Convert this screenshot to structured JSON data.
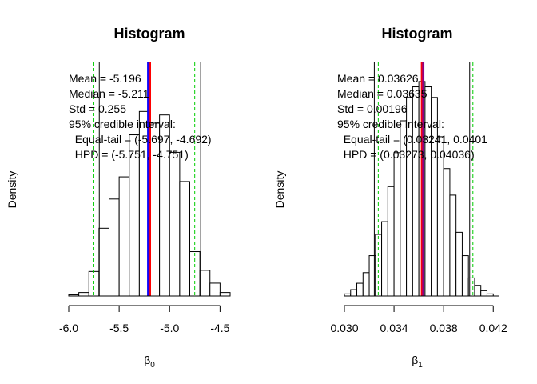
{
  "chart_data": [
    {
      "type": "bar",
      "title": "Histogram",
      "xlabel_sym": "β",
      "xlabel_sub": "0",
      "ylabel": "Density",
      "xlim": [
        -6.0,
        -4.4
      ],
      "bin_width": 0.1,
      "bins": [
        {
          "x0": -6.0,
          "x1": -5.9,
          "density": 0.01
        },
        {
          "x0": -5.9,
          "x1": -5.8,
          "density": 0.03
        },
        {
          "x0": -5.8,
          "x1": -5.7,
          "density": 0.21
        },
        {
          "x0": -5.7,
          "x1": -5.6,
          "density": 0.58
        },
        {
          "x0": -5.6,
          "x1": -5.5,
          "density": 0.83
        },
        {
          "x0": -5.5,
          "x1": -5.4,
          "density": 1.02
        },
        {
          "x0": -5.4,
          "x1": -5.3,
          "density": 1.38
        },
        {
          "x0": -5.3,
          "x1": -5.2,
          "density": 1.58
        },
        {
          "x0": -5.2,
          "x1": -5.1,
          "density": 1.48
        },
        {
          "x0": -5.1,
          "x1": -5.0,
          "density": 1.55
        },
        {
          "x0": -5.0,
          "x1": -4.9,
          "density": 1.23
        },
        {
          "x0": -4.9,
          "x1": -4.8,
          "density": 0.98
        },
        {
          "x0": -4.8,
          "x1": -4.7,
          "density": 0.38
        },
        {
          "x0": -4.7,
          "x1": -4.6,
          "density": 0.22
        },
        {
          "x0": -4.6,
          "x1": -4.5,
          "density": 0.11
        },
        {
          "x0": -4.5,
          "x1": -4.4,
          "density": 0.03
        }
      ],
      "ymax": 2.0,
      "ticks": [
        -6.0,
        -5.5,
        -5.0,
        -4.5
      ],
      "tick_labels": [
        "-6.0",
        "-5.5",
        "-5.0",
        "-4.5"
      ],
      "mean": -5.196,
      "median": -5.211,
      "equal_tail": [
        -5.697,
        -4.692
      ],
      "hpd": [
        -5.751,
        -4.751
      ],
      "stats_lines": [
        "Mean = -5.196",
        "Median = -5.211",
        "Std = 0.255",
        "95% credible interval:",
        "  Equal-tail = (-5.697, -4.692)",
        "  HPD = (-5.751, -4.751)"
      ]
    },
    {
      "type": "bar",
      "title": "Histogram",
      "xlabel_sym": "β",
      "xlabel_sub": "1",
      "ylabel": "Density",
      "xlim": [
        0.03,
        0.0425
      ],
      "bin_width": 0.0005,
      "bins": [
        {
          "x0": 0.03,
          "x1": 0.0305,
          "density": 2
        },
        {
          "x0": 0.0305,
          "x1": 0.031,
          "density": 6
        },
        {
          "x0": 0.031,
          "x1": 0.0315,
          "density": 12
        },
        {
          "x0": 0.0315,
          "x1": 0.032,
          "density": 22
        },
        {
          "x0": 0.032,
          "x1": 0.0325,
          "density": 38
        },
        {
          "x0": 0.0325,
          "x1": 0.033,
          "density": 58
        },
        {
          "x0": 0.033,
          "x1": 0.0335,
          "density": 70
        },
        {
          "x0": 0.0335,
          "x1": 0.034,
          "density": 103
        },
        {
          "x0": 0.034,
          "x1": 0.0345,
          "density": 135
        },
        {
          "x0": 0.0345,
          "x1": 0.035,
          "density": 165
        },
        {
          "x0": 0.035,
          "x1": 0.0355,
          "density": 187
        },
        {
          "x0": 0.0355,
          "x1": 0.036,
          "density": 197
        },
        {
          "x0": 0.036,
          "x1": 0.0365,
          "density": 202
        },
        {
          "x0": 0.0365,
          "x1": 0.037,
          "density": 197
        },
        {
          "x0": 0.037,
          "x1": 0.0375,
          "density": 187
        },
        {
          "x0": 0.0375,
          "x1": 0.038,
          "density": 150
        },
        {
          "x0": 0.038,
          "x1": 0.0385,
          "density": 120
        },
        {
          "x0": 0.0385,
          "x1": 0.039,
          "density": 95
        },
        {
          "x0": 0.039,
          "x1": 0.0395,
          "density": 60
        },
        {
          "x0": 0.0395,
          "x1": 0.04,
          "density": 38
        },
        {
          "x0": 0.04,
          "x1": 0.0405,
          "density": 17
        },
        {
          "x0": 0.0405,
          "x1": 0.041,
          "density": 10
        },
        {
          "x0": 0.041,
          "x1": 0.0415,
          "density": 5
        },
        {
          "x0": 0.0415,
          "x1": 0.042,
          "density": 2
        }
      ],
      "ymax": 220,
      "ticks": [
        0.03,
        0.034,
        0.038,
        0.042
      ],
      "tick_labels": [
        "0.030",
        "0.034",
        "0.038",
        "0.042"
      ],
      "mean": 0.03626,
      "median": 0.03635,
      "equal_tail": [
        0.03241,
        0.0401
      ],
      "hpd": [
        0.03273,
        0.04036
      ],
      "stats_lines": [
        "Mean = 0.03626",
        "Median = 0.03635",
        "Std = 0.00196",
        "95% credible interval:",
        "  Equal-tail = (0.03241, 0.0401",
        "  HPD = (0.03273, 0.04036)"
      ]
    }
  ],
  "colors": {
    "mean_line": "#ff0000",
    "median_line": "#0000ff",
    "equal_tail_line": "#000000",
    "hpd_line": "#00cc00",
    "bar_stroke": "#000000",
    "bar_fill": "#ffffff"
  }
}
